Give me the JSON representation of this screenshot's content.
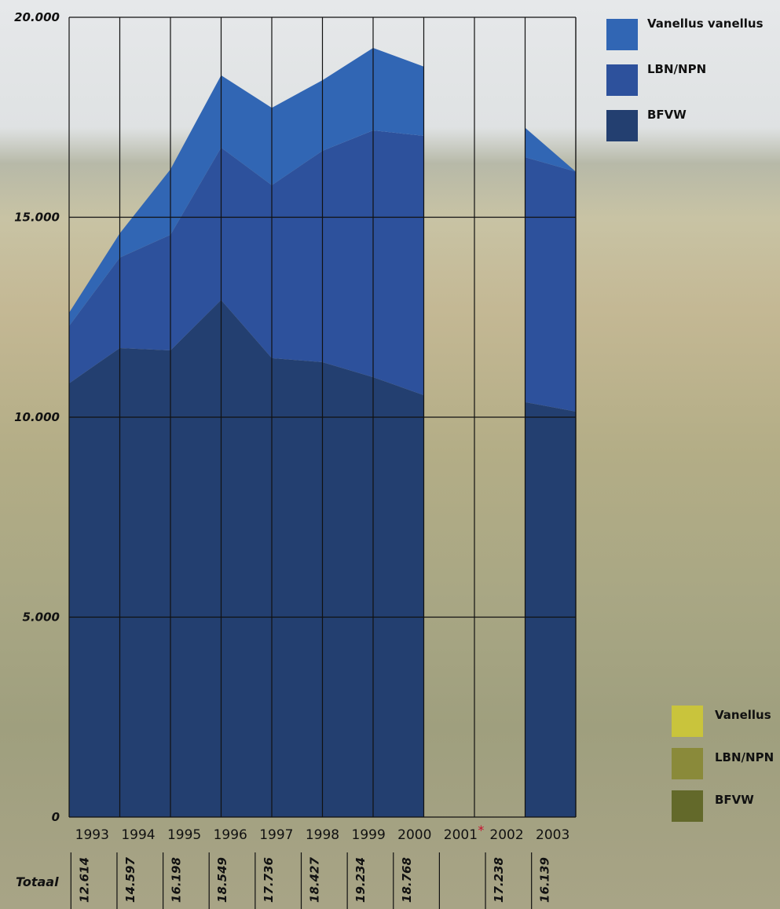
{
  "chart_data": {
    "type": "stacked-area",
    "categories": [
      "1993",
      "1994",
      "1995",
      "1996",
      "1997",
      "1998",
      "1999",
      "2000",
      "2001",
      "2002",
      "2003"
    ],
    "category_note": {
      "index": 8,
      "text": "*"
    },
    "series": [
      {
        "name": "BFVW",
        "color": "#233f70",
        "values": [
          10845,
          11730,
          11670,
          12930,
          11475,
          11375,
          11000,
          10550,
          null,
          10375,
          10140
        ]
      },
      {
        "name": "LBN/NPN",
        "color": "#2d519c",
        "values": [
          1435,
          2260,
          2890,
          3810,
          4325,
          5285,
          6170,
          6485,
          null,
          6125,
          5999
        ]
      },
      {
        "name": "Vanellus vanellus",
        "color": "#3166b4",
        "values": [
          334,
          607,
          1638,
          1809,
          1936,
          1767,
          2064,
          1733,
          null,
          738,
          0
        ]
      }
    ],
    "ylim": [
      0,
      20000
    ],
    "yticks": [
      0,
      {
        "value": 5000,
        "label": "5.000"
      },
      {
        "value": 10000,
        "label": "10.000"
      },
      {
        "value": 15000,
        "label": "15.000"
      },
      {
        "value": 20000,
        "label": "20.000"
      }
    ],
    "grid": true,
    "totals": {
      "label": "Totaal",
      "values": [
        12614,
        14597,
        16198,
        18549,
        17736,
        18427,
        19234,
        18768,
        null,
        17238,
        16139
      ],
      "value_labels": [
        "12.614",
        "14.597",
        "16.198",
        "18.549",
        "17.736",
        "18.427",
        "19.234",
        "18.768",
        null,
        "17.238",
        "16.139"
      ]
    },
    "legend2": [
      {
        "name": "Vanellus",
        "color": "#c9c43c"
      },
      {
        "name": "LBN/NPN",
        "color": "#8a8a3a"
      },
      {
        "name": "BFVW",
        "color": "#63692a"
      }
    ]
  }
}
